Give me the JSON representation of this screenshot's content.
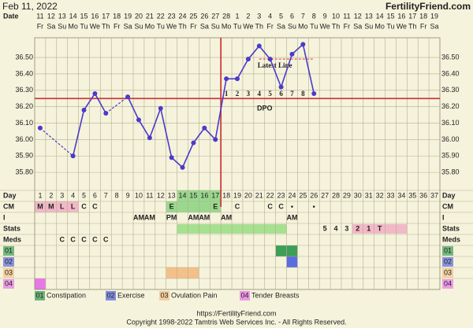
{
  "header": {
    "date": "Feb 11, 2022",
    "site": "FertilityFriend.com",
    "date_label": "Date"
  },
  "chart_data": {
    "type": "line",
    "categories": [
      1,
      2,
      3,
      4,
      5,
      6,
      7,
      8,
      9,
      10,
      11,
      12,
      13,
      14,
      15,
      16,
      17,
      18,
      19,
      20,
      21,
      22,
      23,
      24,
      25,
      26,
      27,
      28,
      29,
      30,
      31,
      32,
      33,
      34,
      35,
      36,
      37
    ],
    "dates": [
      11,
      12,
      13,
      14,
      15,
      16,
      17,
      18,
      19,
      20,
      21,
      22,
      23,
      24,
      25,
      26,
      27,
      28,
      1,
      2,
      3,
      4,
      5,
      6,
      7,
      8,
      9,
      10,
      11,
      12,
      13,
      14,
      15,
      16,
      17,
      18,
      19
    ],
    "weekdays": [
      "Fr",
      "Sa",
      "Su",
      "Mo",
      "Tu",
      "We",
      "Th",
      "Fr",
      "Sa",
      "Su",
      "Mo",
      "Tu",
      "We",
      "Th",
      "Fr",
      "Sa",
      "Su",
      "Mo",
      "Tu",
      "We",
      "Th",
      "Fr",
      "Sa",
      "Su",
      "Mo",
      "Tu",
      "We",
      "Th",
      "Fr",
      "Sa",
      "Su",
      "Mo",
      "Tu",
      "We",
      "Th",
      "Fr",
      "Sa"
    ],
    "values": [
      36.07,
      null,
      null,
      35.9,
      36.18,
      36.28,
      36.16,
      null,
      36.26,
      36.12,
      36.01,
      36.19,
      35.89,
      35.83,
      35.98,
      36.07,
      36.0,
      36.37,
      36.37,
      36.49,
      36.57,
      36.49,
      36.32,
      36.52,
      36.58,
      36.28,
      null,
      null,
      null,
      null,
      null,
      null,
      null,
      null,
      null,
      null,
      null
    ],
    "color": "#4b3bc8",
    "ylim": [
      35.7,
      36.62
    ],
    "yticks": [
      {
        "value": 35.8,
        "label": "35.80"
      },
      {
        "value": 35.9,
        "label": "35.90"
      },
      {
        "value": 36.0,
        "label": "36.00"
      },
      {
        "value": 36.1,
        "label": "36.10"
      },
      {
        "value": 36.2,
        "label": "36.20"
      },
      {
        "value": 36.3,
        "label": "36.30"
      },
      {
        "value": 36.4,
        "label": "36.40"
      },
      {
        "value": 36.5,
        "label": "36.50"
      }
    ],
    "grid": true,
    "coverline": 36.25,
    "ovulation_day": 17,
    "line_color": "#c83c3c",
    "latest_line": {
      "label": "Latest Line",
      "value": 36.49,
      "from": 21,
      "to": 26
    },
    "dpo_label": "DPO",
    "dpo": [
      null,
      null,
      null,
      null,
      null,
      null,
      null,
      null,
      null,
      null,
      null,
      null,
      null,
      null,
      null,
      null,
      null,
      1,
      2,
      3,
      4,
      5,
      6,
      7,
      8,
      null,
      null,
      null,
      null,
      null,
      null,
      null,
      null,
      null,
      null,
      null,
      null
    ]
  },
  "rows": {
    "labels": {
      "day": "Day",
      "cm": "CM",
      "i": "I",
      "stats": "Stats",
      "meds": "Meds"
    },
    "cm": [
      "M",
      "M",
      "L",
      "L",
      "C",
      "C",
      null,
      null,
      null,
      null,
      null,
      null,
      "E",
      null,
      null,
      null,
      "E",
      null,
      "C",
      null,
      null,
      "C",
      "C",
      "•",
      null,
      "•",
      null,
      null,
      null,
      null,
      null,
      null,
      null,
      null,
      null,
      null,
      null
    ],
    "i": [
      null,
      null,
      null,
      null,
      null,
      null,
      null,
      null,
      null,
      "AM",
      "AM",
      null,
      "PM",
      null,
      "AM",
      "AM",
      null,
      "AM",
      null,
      null,
      null,
      null,
      null,
      "AM",
      null,
      null,
      null,
      null,
      null,
      null,
      null,
      null,
      null,
      null,
      null,
      null,
      null
    ],
    "stats": [
      null,
      null,
      null,
      null,
      null,
      null,
      null,
      null,
      null,
      null,
      null,
      null,
      null,
      null,
      null,
      null,
      null,
      null,
      null,
      null,
      null,
      null,
      null,
      null,
      null,
      null,
      5,
      4,
      3,
      2,
      1,
      "T",
      null,
      null,
      null,
      null,
      null
    ],
    "meds": [
      null,
      null,
      "C",
      "C",
      "C",
      "C",
      "C",
      null,
      null,
      null,
      null,
      null,
      null,
      null,
      null,
      null,
      null,
      null,
      null,
      null,
      null,
      null,
      null,
      null,
      null,
      null,
      null,
      null,
      null,
      null,
      null,
      null,
      null,
      null,
      null,
      null,
      null
    ],
    "day_highlight": {
      "from": 14,
      "to": 17,
      "color": "#9ad88e"
    },
    "cm_highlights": [
      {
        "from": 1,
        "to": 4,
        "color": "#f2b8c8"
      },
      {
        "from": 13,
        "to": 13,
        "color": "#9ad88e"
      },
      {
        "from": 17,
        "to": 17,
        "color": "#9ad88e"
      }
    ],
    "stats_highlights": [
      {
        "from": 14,
        "to": 23,
        "color": "#a6e090"
      },
      {
        "from": 30,
        "to": 34,
        "color": "#f2b8c8"
      }
    ]
  },
  "symptoms": [
    {
      "code": "01",
      "name": "Constipation",
      "color": "#3d9e58",
      "days": [
        23,
        24
      ]
    },
    {
      "code": "02",
      "name": "Exercise",
      "color": "#5b6be0",
      "days": [
        24
      ]
    },
    {
      "code": "03",
      "name": "Ovulation Pain",
      "color": "#f3c089",
      "days": [
        13,
        14,
        15
      ]
    },
    {
      "code": "04",
      "name": "Tender Breasts",
      "color": "#e878e8",
      "days": [
        1
      ]
    }
  ],
  "footer": {
    "url": "https://FertilityFriend.com",
    "copyright": "Copyright 1998-2022 Tamtris Web Services Inc. - All Rights Reserved."
  }
}
